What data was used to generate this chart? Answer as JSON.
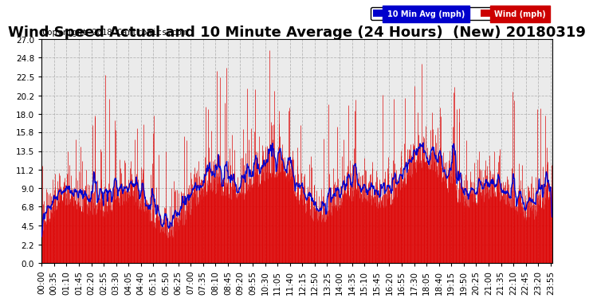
{
  "title": "Wind Speed Actual and 10 Minute Average (24 Hours)  (New) 20180319",
  "copyright_text": "Copyright 2018 Cartronics.com",
  "legend_labels": [
    "10 Min Avg (mph)",
    "Wind (mph)"
  ],
  "legend_colors": [
    "#0000cc",
    "#cc0000"
  ],
  "ylabel": "",
  "ylim_min": 0.0,
  "ylim_max": 27.0,
  "yticks": [
    0.0,
    2.2,
    4.5,
    6.8,
    9.0,
    11.2,
    13.5,
    15.8,
    18.0,
    20.2,
    22.5,
    24.8,
    27.0
  ],
  "bg_color": "#ffffff",
  "plot_bg_color": "#ebebeb",
  "grid_color": "#aaaaaa",
  "grid_style": "--",
  "wind_color": "#dd0000",
  "avg_color": "#0000cc",
  "title_fontsize": 13,
  "copyright_fontsize": 7.5,
  "tick_fontsize": 7.5,
  "seed": 42,
  "n_points": 1440,
  "tick_step": 35,
  "avg_window": 10
}
